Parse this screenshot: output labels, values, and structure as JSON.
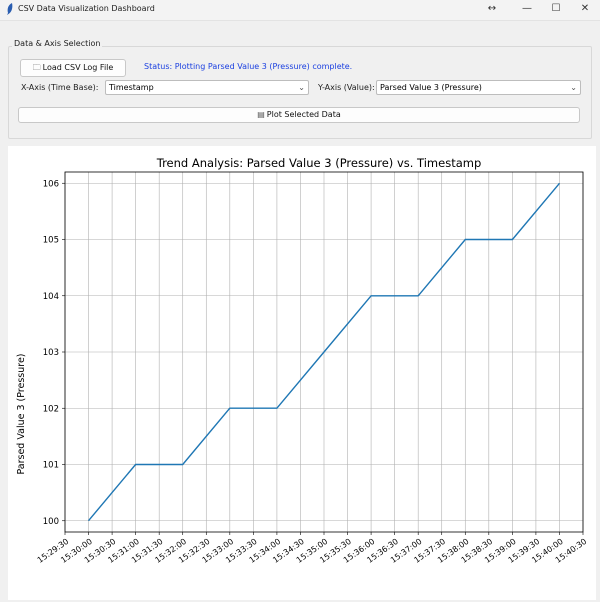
{
  "window": {
    "title": "CSV Data Visualization Dashboard",
    "resize_glyph": "↔",
    "min_glyph": "—",
    "max_glyph": "☐",
    "close_glyph": "✕"
  },
  "controls": {
    "group_title": "Data & Axis Selection",
    "load_button_label": "Load CSV Log File",
    "load_button_icon": "folder-icon",
    "status_text": "Status: Plotting Parsed Value 3 (Pressure) complete.",
    "x_axis_label": "X-Axis (Time Base):",
    "x_axis_value": "Timestamp",
    "y_axis_label": "Y-Axis (Value):",
    "y_axis_value": "Parsed Value 3 (Pressure)",
    "plot_button_label": "Plot Selected Data",
    "plot_button_icon": "chart-icon",
    "status_color": "#1a3fe0"
  },
  "chart_data": {
    "type": "line",
    "title": "Trend Analysis: Parsed Value 3 (Pressure) vs. Timestamp",
    "xlabel": "",
    "ylabel": "Parsed Value 3 (Pressure)",
    "x": [
      "15:30:00",
      "15:31:00",
      "15:32:00",
      "15:33:00",
      "15:34:00",
      "15:35:00",
      "15:36:00",
      "15:37:00",
      "15:38:00",
      "15:39:00",
      "15:40:00"
    ],
    "values": [
      100,
      101,
      101,
      102,
      102,
      103,
      104,
      104,
      105,
      105,
      106
    ],
    "x_ticks": [
      "15:29:30",
      "15:30:00",
      "15:30:30",
      "15:31:00",
      "15:31:30",
      "15:32:00",
      "15:32:30",
      "15:33:00",
      "15:33:30",
      "15:34:00",
      "15:34:30",
      "15:35:00",
      "15:35:30",
      "15:36:00",
      "15:36:30",
      "15:37:00",
      "15:37:30",
      "15:38:00",
      "15:38:30",
      "15:39:00",
      "15:39:30",
      "15:40:00",
      "15:40:30"
    ],
    "xlim": [
      "15:29:30",
      "15:40:30"
    ],
    "y_ticks": [
      100,
      101,
      102,
      103,
      104,
      105,
      106
    ],
    "ylim": [
      99.8,
      106.2
    ],
    "grid": true,
    "line_color": "#1f77b4"
  }
}
